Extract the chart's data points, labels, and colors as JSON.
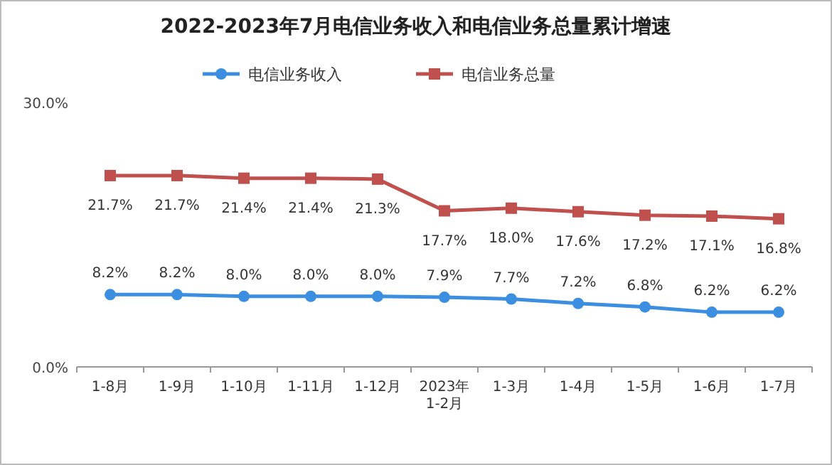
{
  "chart_data": {
    "type": "line",
    "title": "2022-2023年7月电信业务收入和电信业务总量累计增速",
    "categories": [
      "1-8月",
      "1-9月",
      "1-10月",
      "1-11月",
      "1-12月",
      "2023年\n1-2月",
      "1-3月",
      "1-4月",
      "1-5月",
      "1-6月",
      "1-7月"
    ],
    "series": [
      {
        "name": "电信业务收入",
        "color": "#3c8fe0",
        "marker": "circle",
        "values": [
          8.2,
          8.2,
          8.0,
          8.0,
          8.0,
          7.9,
          7.7,
          7.2,
          6.8,
          6.2,
          6.2
        ],
        "value_labels": [
          "8.2%",
          "8.2%",
          "8.0%",
          "8.0%",
          "8.0%",
          "7.9%",
          "7.7%",
          "7.2%",
          "6.8%",
          "6.2%",
          "6.2%"
        ]
      },
      {
        "name": "电信业务总量",
        "color": "#c0504d",
        "marker": "square",
        "values": [
          21.7,
          21.7,
          21.4,
          21.4,
          21.3,
          17.7,
          18.0,
          17.6,
          17.2,
          17.1,
          16.8
        ],
        "value_labels": [
          "21.7%",
          "21.7%",
          "21.4%",
          "21.4%",
          "21.3%",
          "17.7%",
          "18.0%",
          "17.6%",
          "17.2%",
          "17.1%",
          "16.8%"
        ]
      }
    ],
    "ylim": [
      0,
      30
    ],
    "yticks": [
      {
        "value": 0,
        "label": "0.0%"
      },
      {
        "value": 30,
        "label": "30.0%"
      }
    ],
    "legend": "top",
    "grid": false
  }
}
